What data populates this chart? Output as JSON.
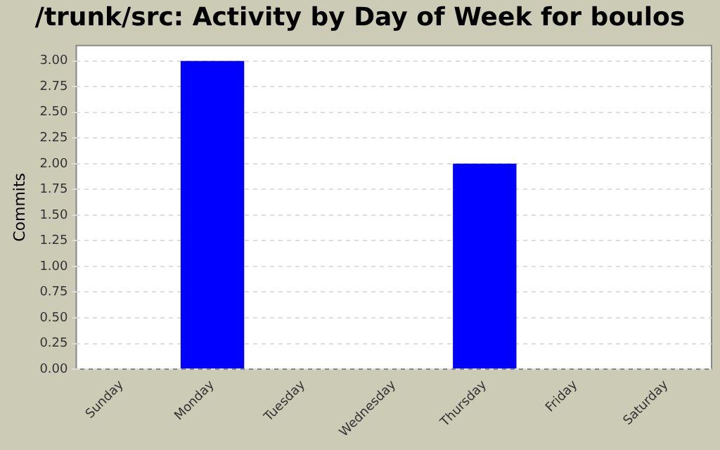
{
  "chart_data": {
    "type": "bar",
    "title": "/trunk/src: Activity by Day of Week for boulos",
    "ylabel": "Commits",
    "categories": [
      "Sunday",
      "Monday",
      "Tuesday",
      "Wednesday",
      "Thursday",
      "Friday",
      "Saturday"
    ],
    "values": [
      0,
      3,
      0,
      0,
      2,
      0,
      0
    ],
    "color": "#0000ff",
    "ylim": [
      0,
      3.15
    ],
    "yticks": [
      {
        "value": 0,
        "label": "0.00"
      },
      {
        "value": 0.25,
        "label": "0.25"
      },
      {
        "value": 0.5,
        "label": "0.50"
      },
      {
        "value": 0.75,
        "label": "0.75"
      },
      {
        "value": 1,
        "label": "1.00"
      },
      {
        "value": 1.25,
        "label": "1.25"
      },
      {
        "value": 1.5,
        "label": "1.50"
      },
      {
        "value": 1.75,
        "label": "1.75"
      },
      {
        "value": 2,
        "label": "2.00"
      },
      {
        "value": 2.25,
        "label": "2.25"
      },
      {
        "value": 2.5,
        "label": "2.50"
      },
      {
        "value": 2.75,
        "label": "2.75"
      },
      {
        "value": 3,
        "label": "3.00"
      }
    ],
    "grid": "y"
  }
}
